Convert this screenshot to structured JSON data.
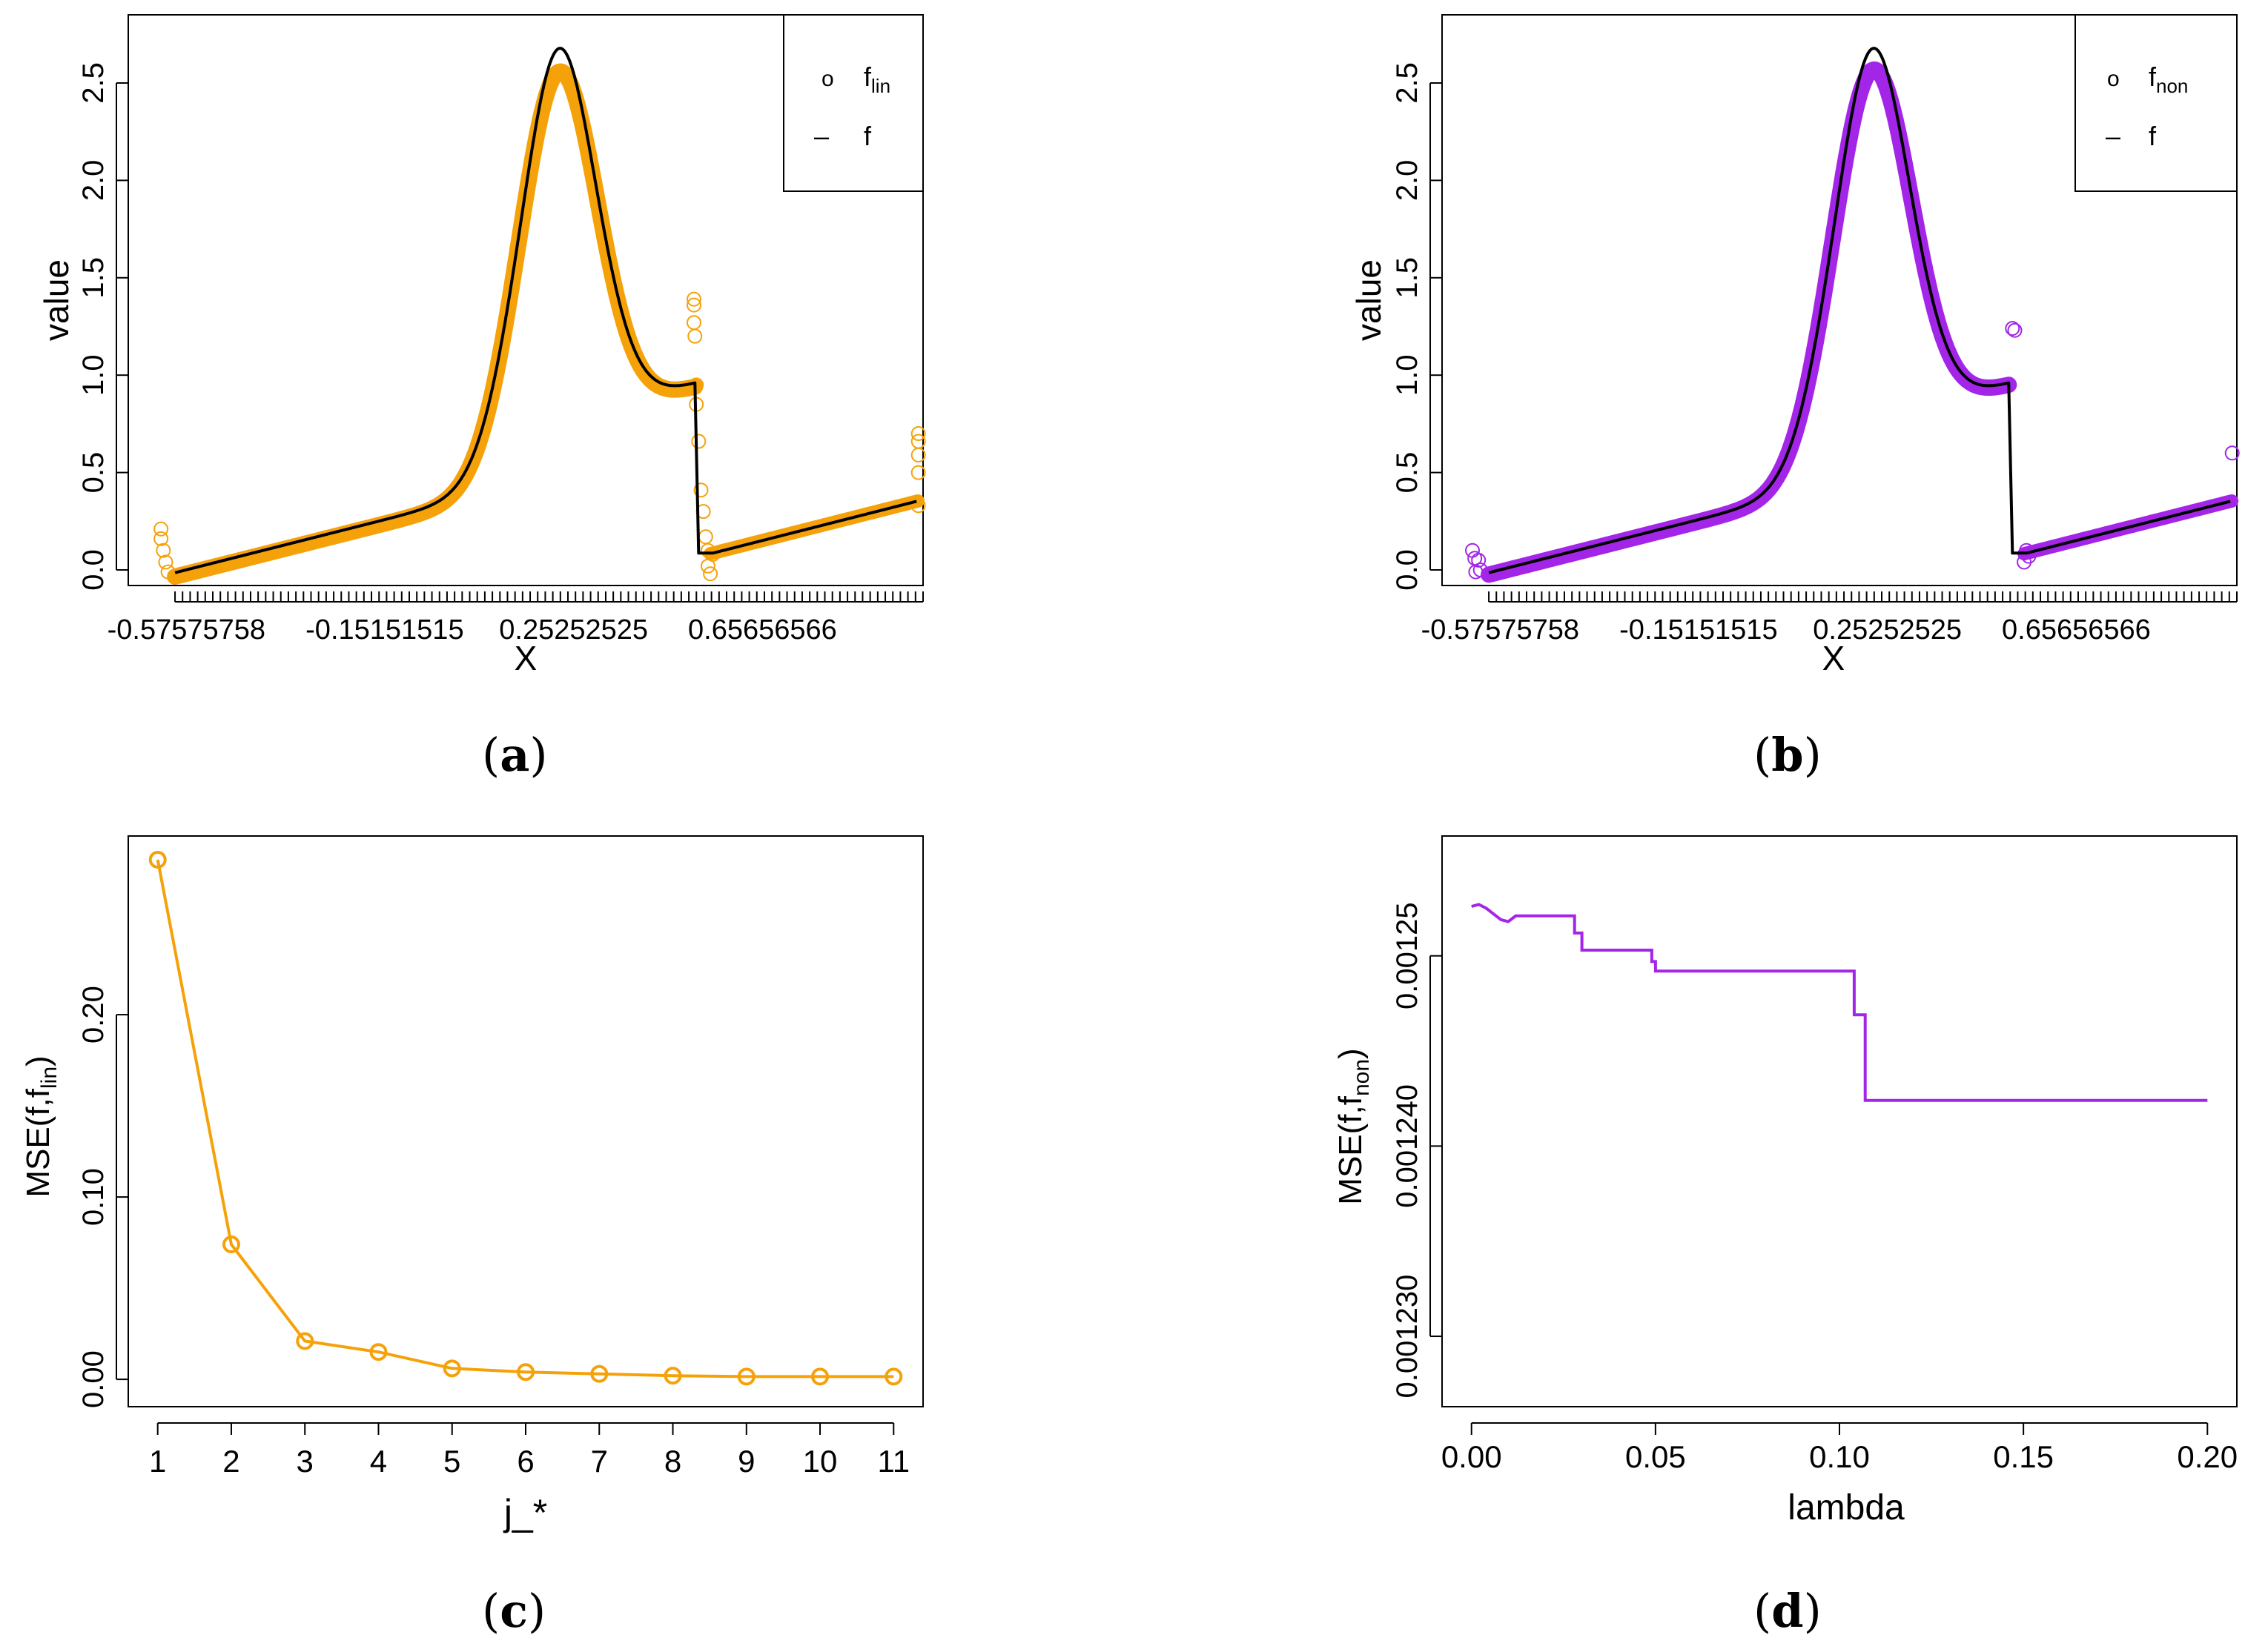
{
  "colors": {
    "orange": "#f5a20a",
    "purple": "#a326e8",
    "black": "#000000"
  },
  "captions": {
    "a": "a",
    "b": "b",
    "c": "c",
    "d": "d"
  },
  "chart_data": [
    {
      "id": "a",
      "type": "scatter",
      "xlabel": "X",
      "ylabel": "value",
      "xlim": [
        -0.7,
        1.0
      ],
      "ylim": [
        -0.08,
        2.85
      ],
      "x_tick_labels": [
        "-0.57575758",
        "-0.15151515",
        "0.25252525",
        "0.65656566"
      ],
      "x_tick_values": [
        -0.57575758,
        -0.15151515,
        0.25252525,
        0.65656566
      ],
      "y_tick_labels": [
        "0.0",
        "0.5",
        "1.0",
        "1.5",
        "2.0",
        "2.5"
      ],
      "y_tick_values": [
        0,
        0.5,
        1.0,
        1.5,
        2.0,
        2.5
      ],
      "legend": {
        "position": "top-right",
        "entries": [
          {
            "symbol": "o",
            "base": "f",
            "sub": "lin",
            "color": "#f5a20a"
          },
          {
            "symbol": "–",
            "base": "f",
            "sub": "",
            "color": "#000000"
          }
        ]
      },
      "series": [
        {
          "name": "f_lin",
          "style": "markers",
          "color": "#f5a20a",
          "outliers": [
            [
              -0.63,
              0.21
            ],
            [
              -0.63,
              0.16
            ],
            [
              -0.625,
              0.1
            ],
            [
              -0.62,
              0.04
            ],
            [
              -0.615,
              -0.01
            ],
            [
              0.51,
              1.39
            ],
            [
              0.51,
              1.36
            ],
            [
              0.51,
              1.27
            ],
            [
              0.512,
              1.2
            ],
            [
              0.515,
              0.95
            ],
            [
              0.515,
              0.85
            ],
            [
              0.52,
              0.66
            ],
            [
              0.525,
              0.41
            ],
            [
              0.53,
              0.3
            ],
            [
              0.535,
              0.17
            ],
            [
              0.54,
              0.1
            ],
            [
              0.54,
              0.02
            ],
            [
              0.545,
              -0.02
            ],
            [
              0.55,
              0.08
            ],
            [
              0.99,
              0.7
            ],
            [
              0.99,
              0.66
            ],
            [
              0.99,
              0.59
            ],
            [
              0.99,
              0.5
            ],
            [
              0.99,
              0.33
            ]
          ]
        },
        {
          "name": "f",
          "style": "line",
          "color": "#000000"
        }
      ]
    },
    {
      "id": "b",
      "type": "scatter",
      "xlabel": "X",
      "ylabel": "value",
      "xlim": [
        -0.7,
        1.0
      ],
      "ylim": [
        -0.08,
        2.85
      ],
      "x_tick_labels": [
        "-0.57575758",
        "-0.15151515",
        "0.25252525",
        "0.65656566"
      ],
      "x_tick_values": [
        -0.57575758,
        -0.15151515,
        0.25252525,
        0.65656566
      ],
      "y_tick_labels": [
        "0.0",
        "0.5",
        "1.0",
        "1.5",
        "2.0",
        "2.5"
      ],
      "y_tick_values": [
        0,
        0.5,
        1.0,
        1.5,
        2.0,
        2.5
      ],
      "legend": {
        "position": "top-right",
        "entries": [
          {
            "symbol": "o",
            "base": "f",
            "sub": "non",
            "color": "#a326e8"
          },
          {
            "symbol": "–",
            "base": "f",
            "sub": "",
            "color": "#000000"
          }
        ]
      },
      "series": [
        {
          "name": "f_non",
          "style": "markers",
          "color": "#a326e8",
          "outliers": [
            [
              -0.635,
              0.1
            ],
            [
              -0.63,
              0.06
            ],
            [
              -0.628,
              -0.01
            ],
            [
              -0.622,
              0.05
            ],
            [
              -0.618,
              0.0
            ],
            [
              0.52,
              1.24
            ],
            [
              0.525,
              1.23
            ],
            [
              0.545,
              0.04
            ],
            [
              0.55,
              0.1
            ],
            [
              0.555,
              0.07
            ],
            [
              0.99,
              0.6
            ]
          ]
        },
        {
          "name": "f",
          "style": "line",
          "color": "#000000"
        }
      ]
    },
    {
      "id": "c",
      "type": "line",
      "xlabel": "j_*",
      "ylabel_base": "MSE(f,f",
      "ylabel_sub": "lin",
      "ylabel_end": ")",
      "categories": [
        "1",
        "2",
        "3",
        "4",
        "5",
        "6",
        "7",
        "8",
        "9",
        "10",
        "11"
      ],
      "x": [
        1,
        2,
        3,
        4,
        5,
        6,
        7,
        8,
        9,
        10,
        11
      ],
      "values": [
        0.285,
        0.074,
        0.021,
        0.015,
        0.006,
        0.004,
        0.003,
        0.002,
        0.0015,
        0.0015,
        0.0015
      ],
      "xlim": [
        0.6,
        11.4
      ],
      "ylim": [
        -0.015,
        0.298
      ],
      "y_tick_labels": [
        "0.00",
        "0.10",
        "0.20"
      ],
      "y_tick_values": [
        0,
        0.1,
        0.2
      ],
      "color": "#f5a20a"
    },
    {
      "id": "d",
      "type": "line",
      "xlabel": "lambda",
      "ylabel_base": "MSE(f,f",
      "ylabel_sub": "non",
      "ylabel_end": ")",
      "xlim": [
        -0.008,
        0.208
      ],
      "ylim": [
        0.0012263,
        0.0012563
      ],
      "x_tick_labels": [
        "0.00",
        "0.05",
        "0.10",
        "0.15",
        "0.20"
      ],
      "x_tick_values": [
        0,
        0.05,
        0.1,
        0.15,
        0.2
      ],
      "y_tick_labels": [
        "0.001230",
        "0.001240",
        "0.001250"
      ],
      "y_tick_display": [
        "0.001230",
        "0.001240",
        "0.00125"
      ],
      "y_tick_values": [
        0.00123,
        0.00124,
        0.00125
      ],
      "points": [
        [
          0,
          0.0012526
        ],
        [
          0.002,
          0.0012527
        ],
        [
          0.004,
          0.0012525
        ],
        [
          0.006,
          0.0012522
        ],
        [
          0.008,
          0.0012519
        ],
        [
          0.01,
          0.0012518
        ],
        [
          0.012,
          0.0012521
        ],
        [
          0.028,
          0.0012521
        ],
        [
          0.028,
          0.0012512
        ],
        [
          0.03,
          0.0012512
        ],
        [
          0.03,
          0.0012503
        ],
        [
          0.049,
          0.0012503
        ],
        [
          0.049,
          0.0012497
        ],
        [
          0.05,
          0.0012497
        ],
        [
          0.05,
          0.0012492
        ],
        [
          0.104,
          0.0012492
        ],
        [
          0.104,
          0.0012469
        ],
        [
          0.107,
          0.0012469
        ],
        [
          0.107,
          0.0012424
        ],
        [
          0.2,
          0.0012424
        ]
      ],
      "color": "#a326e8"
    }
  ]
}
